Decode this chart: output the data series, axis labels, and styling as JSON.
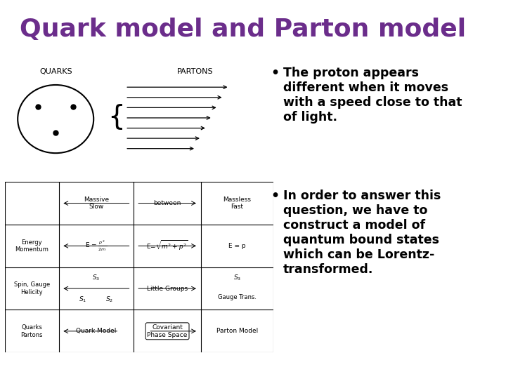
{
  "title": "Quark model and Parton model",
  "title_color": "#6B2D8B",
  "title_fontsize": 26,
  "background_color": "#FFFFFF",
  "bullet1_lines": [
    "The proton appears",
    "different when it moves",
    "with a speed close to that",
    "of light."
  ],
  "bullet2_lines": [
    "In order to answer this",
    "question, we have to",
    "construct a model of",
    "quantum bound states",
    "which can be Lorentz-",
    "transformed."
  ],
  "bullet_fontsize": 12.5,
  "bullet_color": "#000000",
  "quarks_label": "QUARKS",
  "partons_label": "PARTONS"
}
